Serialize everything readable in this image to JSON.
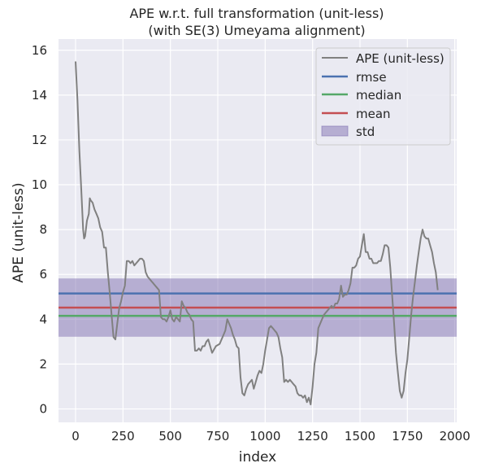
{
  "chart_data": {
    "type": "line",
    "title": [
      "APE w.r.t. full transformation (unit-less)",
      "(with SE(3) Umeyama alignment)"
    ],
    "xlabel": "index",
    "ylabel": "APE (unit-less)",
    "xlim": [
      -90,
      2010
    ],
    "ylim": [
      -0.6,
      16.5
    ],
    "xticks": [
      0,
      250,
      500,
      750,
      1000,
      1250,
      1500,
      1750,
      2000
    ],
    "yticks": [
      0,
      2,
      4,
      6,
      8,
      10,
      12,
      14,
      16
    ],
    "grid": true,
    "legend_position": "top-right",
    "colors": {
      "background": "#eaeaf2",
      "ape": "#808080",
      "rmse": "#4c72b0",
      "median": "#55a868",
      "mean": "#c44e52",
      "std": "#8172b2"
    },
    "series": [
      {
        "name": "APE (unit-less)",
        "x": [
          0,
          10,
          20,
          30,
          40,
          45,
          50,
          60,
          70,
          75,
          80,
          90,
          100,
          110,
          120,
          130,
          140,
          150,
          160,
          170,
          180,
          190,
          200,
          210,
          220,
          230,
          240,
          250,
          260,
          270,
          280,
          290,
          300,
          310,
          320,
          330,
          340,
          350,
          360,
          370,
          380,
          390,
          400,
          410,
          420,
          430,
          440,
          450,
          460,
          470,
          480,
          490,
          500,
          510,
          520,
          530,
          540,
          550,
          560,
          570,
          580,
          590,
          600,
          610,
          620,
          630,
          640,
          650,
          660,
          670,
          680,
          690,
          700,
          720,
          740,
          760,
          780,
          790,
          800,
          810,
          820,
          830,
          840,
          850,
          860,
          870,
          880,
          890,
          900,
          910,
          920,
          930,
          940,
          950,
          960,
          970,
          980,
          990,
          1000,
          1010,
          1020,
          1030,
          1040,
          1050,
          1060,
          1070,
          1080,
          1090,
          1100,
          1110,
          1120,
          1130,
          1140,
          1150,
          1160,
          1170,
          1180,
          1190,
          1200,
          1210,
          1220,
          1230,
          1240,
          1250,
          1260,
          1270,
          1280,
          1290,
          1300,
          1310,
          1320,
          1330,
          1340,
          1350,
          1360,
          1370,
          1380,
          1390,
          1400,
          1410,
          1420,
          1430,
          1440,
          1450,
          1460,
          1470,
          1480,
          1490,
          1500,
          1510,
          1520,
          1530,
          1540,
          1550,
          1560,
          1570,
          1580,
          1590,
          1600,
          1610,
          1620,
          1630,
          1640,
          1650,
          1660,
          1670,
          1680,
          1690,
          1700,
          1710,
          1720,
          1730,
          1740,
          1750,
          1760,
          1770,
          1780,
          1790,
          1800,
          1810,
          1820,
          1830,
          1840,
          1850,
          1860,
          1870,
          1880,
          1890,
          1900,
          1910
        ],
        "y": [
          15.5,
          13.8,
          11.5,
          9.8,
          8.0,
          7.6,
          7.7,
          8.4,
          8.7,
          9.4,
          9.3,
          9.2,
          8.9,
          8.7,
          8.5,
          8.1,
          7.9,
          7.2,
          7.2,
          6.1,
          5.2,
          4.2,
          3.2,
          3.1,
          3.8,
          4.5,
          4.8,
          5.2,
          5.5,
          6.6,
          6.6,
          6.5,
          6.6,
          6.4,
          6.5,
          6.6,
          6.7,
          6.7,
          6.6,
          6.1,
          5.9,
          5.8,
          5.7,
          5.6,
          5.5,
          5.4,
          5.3,
          4.1,
          4.0,
          4.0,
          3.9,
          4.1,
          4.4,
          4.0,
          3.9,
          4.1,
          4.0,
          3.9,
          4.8,
          4.6,
          4.5,
          4.3,
          4.2,
          4.0,
          3.9,
          2.6,
          2.6,
          2.7,
          2.6,
          2.8,
          2.8,
          3.0,
          3.1,
          2.5,
          2.8,
          2.9,
          3.3,
          3.5,
          4.0,
          3.8,
          3.6,
          3.3,
          3.1,
          2.8,
          2.7,
          1.4,
          0.7,
          0.6,
          0.9,
          1.1,
          1.2,
          1.3,
          0.9,
          1.2,
          1.5,
          1.7,
          1.6,
          2.0,
          2.6,
          3.1,
          3.6,
          3.7,
          3.6,
          3.5,
          3.4,
          3.2,
          2.7,
          2.3,
          1.2,
          1.3,
          1.2,
          1.3,
          1.2,
          1.1,
          1.0,
          0.7,
          0.6,
          0.6,
          0.5,
          0.6,
          0.3,
          0.5,
          0.2,
          1.0,
          2.0,
          2.5,
          3.6,
          3.8,
          4.0,
          4.2,
          4.3,
          4.4,
          4.5,
          4.6,
          4.5,
          4.7,
          4.7,
          4.9,
          5.5,
          5.0,
          5.1,
          5.1,
          5.3,
          5.6,
          6.3,
          6.3,
          6.4,
          6.7,
          6.8,
          7.3,
          7.8,
          7.0,
          7.0,
          6.7,
          6.7,
          6.5,
          6.5,
          6.5,
          6.6,
          6.6,
          6.9,
          7.3,
          7.3,
          7.2,
          6.3,
          5.0,
          3.8,
          2.5,
          1.6,
          0.8,
          0.5,
          0.8,
          1.6,
          2.2,
          3.2,
          4.2,
          5.0,
          5.7,
          6.4,
          7.0,
          7.6,
          8.0,
          7.7,
          7.6,
          7.6,
          7.3,
          7.0,
          6.5,
          6.1,
          5.3
        ]
      },
      {
        "name": "rmse",
        "value": 5.15
      },
      {
        "name": "median",
        "value": 4.15
      },
      {
        "name": "mean",
        "value": 4.52
      },
      {
        "name": "std",
        "range": [
          3.22,
          5.82
        ]
      }
    ]
  }
}
